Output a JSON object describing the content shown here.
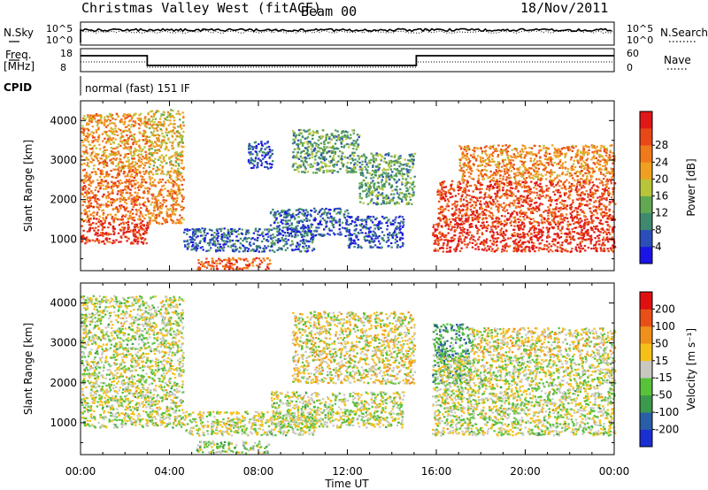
{
  "header": {
    "title": "Christmas Valley West (fitACF)",
    "beam": "Beam 00",
    "date": "18/Nov/2011"
  },
  "strips": {
    "nsky_label": "N.Sky",
    "nsearch_label": "N.Search",
    "noise_tick_high": "10^5",
    "noise_tick_low": "10^0",
    "freq_label_1": "Freq.",
    "freq_label_2": "[MHz]",
    "freq_tick_high": "18",
    "freq_tick_low": "8",
    "nave_label": "Nave",
    "nave_tick_high": "60",
    "nave_tick_low": "0",
    "cpid_label": "CPID",
    "cpid_text": "normal (fast) 151 IF"
  },
  "chart_data": [
    {
      "type": "heatmap",
      "name": "power-panel",
      "ylabel": "Slant Range [km]",
      "xlabel": "Time UT",
      "y_ticks": [
        "1000",
        "2000",
        "3000",
        "4000"
      ],
      "ylim": [
        200,
        4500
      ],
      "x_ticks": [
        "00:00",
        "04:00",
        "08:00",
        "12:00",
        "16:00",
        "20:00",
        "00:00"
      ],
      "xlim_hours": [
        0,
        24
      ],
      "colorbar": {
        "label": "Power [dB]",
        "ticks": [
          "4",
          "8",
          "12",
          "16",
          "20",
          "24",
          "28"
        ],
        "colors": [
          "#1b14e6",
          "#2a4fb8",
          "#3f8a6e",
          "#62a852",
          "#b8c43a",
          "#f0a020",
          "#f07a1a",
          "#e84818",
          "#e01818"
        ]
      },
      "regions": [
        {
          "t0": 0.0,
          "t1": 3.0,
          "r0": 900,
          "r1": 1500,
          "level": 0.9
        },
        {
          "t0": 0.0,
          "t1": 3.0,
          "r0": 1500,
          "r1": 2800,
          "level": 0.75
        },
        {
          "t0": 0.0,
          "t1": 3.0,
          "r0": 2800,
          "r1": 4200,
          "level": 0.65
        },
        {
          "t0": 3.0,
          "t1": 4.6,
          "r0": 1400,
          "r1": 2600,
          "level": 0.7
        },
        {
          "t0": 3.0,
          "t1": 4.6,
          "r0": 2600,
          "r1": 4300,
          "level": 0.55
        },
        {
          "t0": 4.6,
          "t1": 10.5,
          "r0": 700,
          "r1": 1300,
          "level": 0.2
        },
        {
          "t0": 5.2,
          "t1": 8.5,
          "r0": 250,
          "r1": 550,
          "level": 0.8
        },
        {
          "t0": 8.5,
          "t1": 12.0,
          "r0": 1100,
          "r1": 1800,
          "level": 0.18
        },
        {
          "t0": 12.0,
          "t1": 14.5,
          "r0": 800,
          "r1": 1600,
          "level": 0.15
        },
        {
          "t0": 7.5,
          "t1": 8.6,
          "r0": 2800,
          "r1": 3500,
          "level": 0.15
        },
        {
          "t0": 9.5,
          "t1": 12.5,
          "r0": 2700,
          "r1": 3800,
          "level": 0.35
        },
        {
          "t0": 12.5,
          "t1": 15.0,
          "r0": 1900,
          "r1": 3200,
          "level": 0.35
        },
        {
          "t0": 15.8,
          "t1": 24.0,
          "r0": 700,
          "r1": 1400,
          "level": 0.92
        },
        {
          "t0": 16.0,
          "t1": 24.0,
          "r0": 1400,
          "r1": 2500,
          "level": 0.85
        },
        {
          "t0": 17.0,
          "t1": 24.0,
          "r0": 2500,
          "r1": 3400,
          "level": 0.7
        }
      ]
    },
    {
      "type": "heatmap",
      "name": "velocity-panel",
      "ylabel": "Slant Range [km]",
      "xlabel": "Time UT",
      "y_ticks": [
        "1000",
        "2000",
        "3000",
        "4000"
      ],
      "ylim": [
        200,
        4500
      ],
      "x_ticks": [
        "00:00",
        "04:00",
        "08:00",
        "12:00",
        "16:00",
        "20:00",
        "00:00"
      ],
      "xlim_hours": [
        0,
        24
      ],
      "colorbar": {
        "label": "Velocity [m s⁻¹]",
        "ticks": [
          "200",
          "100",
          "50",
          "15",
          "-15",
          "-50",
          "-100",
          "-200"
        ],
        "colors": [
          "#1a2fd0",
          "#2a5fa8",
          "#3c9a4c",
          "#58c23a",
          "#c8c8c0",
          "#f5c018",
          "#f0901a",
          "#e85018",
          "#e01010"
        ]
      },
      "regions": [
        {
          "t0": 0.0,
          "t1": 4.6,
          "r0": 900,
          "r1": 4200,
          "level": 0.5
        },
        {
          "t0": 4.6,
          "t1": 10.5,
          "r0": 700,
          "r1": 1300,
          "level": 0.5
        },
        {
          "t0": 5.2,
          "t1": 8.5,
          "r0": 250,
          "r1": 550,
          "level": 0.45
        },
        {
          "t0": 8.5,
          "t1": 14.5,
          "r0": 900,
          "r1": 1800,
          "level": 0.5
        },
        {
          "t0": 9.5,
          "t1": 15.0,
          "r0": 2000,
          "r1": 3800,
          "level": 0.55
        },
        {
          "t0": 15.8,
          "t1": 17.5,
          "r0": 2000,
          "r1": 3500,
          "level": 0.3
        },
        {
          "t0": 15.8,
          "t1": 24.0,
          "r0": 700,
          "r1": 2700,
          "level": 0.5
        },
        {
          "t0": 17.5,
          "t1": 24.0,
          "r0": 2700,
          "r1": 3400,
          "level": 0.55
        }
      ]
    }
  ]
}
